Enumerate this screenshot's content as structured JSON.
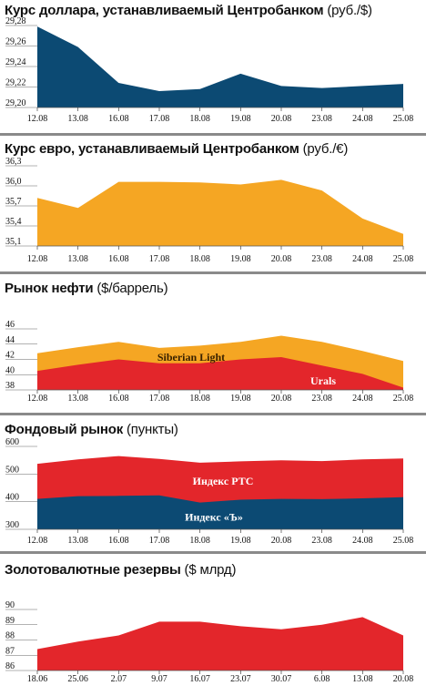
{
  "chart_data": [
    {
      "type": "area",
      "title_bold": "Курс доллара, устанавливаемый Центробанком",
      "title_unit": "(руб./$)",
      "categories": [
        "12.08",
        "13.08",
        "16.08",
        "17.08",
        "18.08",
        "19.08",
        "20.08",
        "23.08",
        "24.08",
        "25.08"
      ],
      "ylim": [
        29.2,
        29.28
      ],
      "yticks": [
        "29,28",
        "29,26",
        "29,24",
        "29,22",
        "29,20"
      ],
      "series": [
        {
          "values": [
            29.279,
            29.259,
            29.224,
            29.216,
            29.218,
            29.233,
            29.221,
            29.219,
            29.221,
            29.223
          ],
          "color": "#0c4a73"
        }
      ]
    },
    {
      "type": "area",
      "title_bold": "Курс евро, устанавливаемый Центробанком",
      "title_unit": "(руб./€)",
      "categories": [
        "12.08",
        "13.08",
        "16.08",
        "17.08",
        "18.08",
        "19.08",
        "20.08",
        "23.08",
        "24.08",
        "25.08"
      ],
      "ylim": [
        35.1,
        36.3
      ],
      "yticks": [
        "36,3",
        "36,0",
        "35,7",
        "35,4",
        "35,1"
      ],
      "series": [
        {
          "values": [
            35.82,
            35.67,
            36.06,
            36.06,
            36.05,
            36.02,
            36.09,
            35.93,
            35.51,
            35.28
          ],
          "color": "#f5a623"
        }
      ]
    },
    {
      "type": "area",
      "title_bold": "Рынок нефти",
      "title_unit": "($/баррель)",
      "categories": [
        "12.08",
        "13.08",
        "16.08",
        "17.08",
        "18.08",
        "19.08",
        "20.08",
        "23.08",
        "24.08",
        "25.08"
      ],
      "ylim": [
        38,
        46
      ],
      "yticks": [
        "46",
        "44",
        "42",
        "40",
        "38"
      ],
      "series": [
        {
          "name": "Siberian Light",
          "values": [
            42.8,
            43.6,
            44.3,
            43.5,
            43.8,
            44.3,
            45.1,
            44.3,
            43.1,
            41.8
          ],
          "color": "#f5a623"
        },
        {
          "name": "Urals",
          "values": [
            40.5,
            41.3,
            42.0,
            41.5,
            41.5,
            42.0,
            42.3,
            41.2,
            40.1,
            38.3
          ],
          "color": "#e3262b"
        }
      ]
    },
    {
      "type": "area",
      "title_bold": "Фондовый рынок",
      "title_unit": "(пункты)",
      "categories": [
        "12.08",
        "13.08",
        "16.08",
        "17.08",
        "18.08",
        "19.08",
        "20.08",
        "23.08",
        "24.08",
        "25.08"
      ],
      "ylim": [
        300,
        600
      ],
      "yticks": [
        "600",
        "500",
        "400",
        "300"
      ],
      "series": [
        {
          "name": "Индекс РТС",
          "values": [
            537,
            553,
            565,
            555,
            541,
            546,
            550,
            547,
            553,
            556
          ],
          "color": "#e3262b"
        },
        {
          "name": "Индекс «Ъ»",
          "values": [
            410,
            420,
            421,
            423,
            397,
            407,
            410,
            409,
            412,
            416
          ],
          "color": "#0c4a73"
        }
      ]
    },
    {
      "type": "area",
      "title_bold": "Золотовалютные резервы",
      "title_unit": "($ млрд)",
      "categories": [
        "18.06",
        "25.06",
        "2.07",
        "9.07",
        "16.07",
        "23.07",
        "30.07",
        "6.08",
        "13.08",
        "20.08"
      ],
      "ylim": [
        86,
        90
      ],
      "yticks": [
        "90",
        "89",
        "88",
        "87",
        "86"
      ],
      "series": [
        {
          "values": [
            87.4,
            87.9,
            88.3,
            89.2,
            89.2,
            88.9,
            88.7,
            89.0,
            89.5,
            88.3
          ],
          "color": "#e3262b"
        }
      ]
    }
  ]
}
